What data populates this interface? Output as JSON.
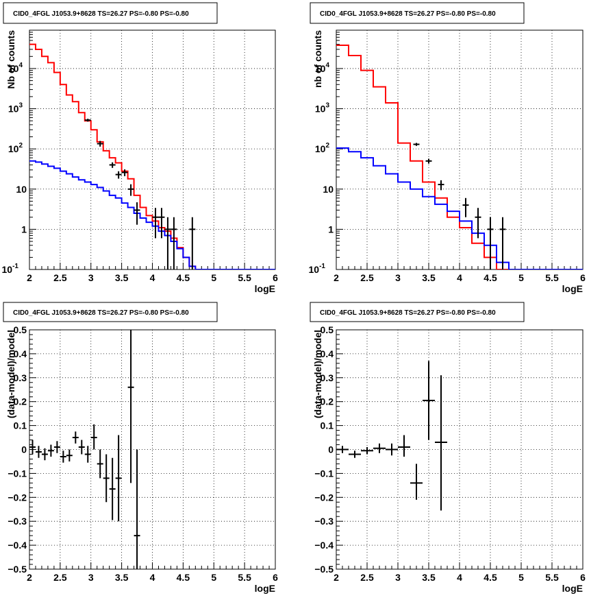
{
  "chart_data": [
    {
      "type": "line",
      "title": "CID0_4FGL J1053.9+8628 TS=26.27 PS=-0.80 PS=-0.80",
      "xlabel": "logE",
      "ylabel": "Nb of counts",
      "xlim": [
        2,
        6
      ],
      "ylim": [
        0.1,
        90000
      ],
      "yscale": "log",
      "grid": true,
      "xticks": [
        "2",
        "2.5",
        "3",
        "3.5",
        "4",
        "4.5",
        "5",
        "5.5",
        "6"
      ],
      "yticks": [
        {
          "base": "10",
          "exp": "-1",
          "value": 0.1
        },
        {
          "base": "1",
          "exp": "",
          "value": 1
        },
        {
          "base": "10",
          "exp": "",
          "value": 10
        },
        {
          "base": "10",
          "exp": "2",
          "value": 100
        },
        {
          "base": "10",
          "exp": "3",
          "value": 1000
        },
        {
          "base": "10",
          "exp": "4",
          "value": 10000
        }
      ],
      "binEdges": [
        2,
        2.1,
        2.2,
        2.3,
        2.4,
        2.5,
        2.6,
        2.7,
        2.8,
        2.9,
        3,
        3.1,
        3.2,
        3.3,
        3.4,
        3.5,
        3.6,
        3.7,
        3.8,
        3.9,
        4,
        4.1,
        4.2,
        4.3,
        4.4,
        4.5,
        4.6,
        4.7,
        4.8,
        4.9,
        5,
        5.1,
        5.2,
        5.3,
        5.4,
        5.5,
        5.6,
        5.7,
        5.8,
        5.9,
        6
      ],
      "series": [
        {
          "color": "#ff0000",
          "kind": "hist",
          "values": [
            40000,
            30000,
            20000,
            14000,
            8000,
            4000,
            2200,
            1500,
            800,
            500,
            300,
            150,
            90,
            60,
            45,
            28,
            18,
            7,
            3.5,
            2.2,
            1.6,
            1.1,
            0.9,
            0.6,
            0.35,
            0.2,
            0.12,
            0.1,
            0.1,
            0.1,
            0.1,
            0.1,
            0.1,
            0.1,
            0.1,
            0.1,
            0.1,
            0.1,
            0.1,
            0.1
          ]
        },
        {
          "color": "#0000ff",
          "kind": "hist",
          "values": [
            50,
            47,
            42,
            37,
            33,
            28,
            24,
            20,
            17,
            15,
            13,
            11,
            9,
            7,
            6,
            4.5,
            3.5,
            2.5,
            1.9,
            1.5,
            1.2,
            0.9,
            0.7,
            0.5,
            0.33,
            0.2,
            0.12,
            0.1,
            0.1,
            0.1,
            0.1,
            0.1,
            0.1,
            0.1,
            0.1,
            0.1,
            0.1,
            0.1,
            0.1,
            0.1
          ]
        },
        {
          "color": "#000000",
          "kind": "points",
          "points": [
            {
              "x": 2.95,
              "y": 520,
              "lo": 478,
              "hi": 563
            },
            {
              "x": 3.15,
              "y": 135,
              "lo": 114,
              "hi": 158
            },
            {
              "x": 3.35,
              "y": 40,
              "lo": 33.7,
              "hi": 46.3
            },
            {
              "x": 3.45,
              "y": 23,
              "lo": 18.2,
              "hi": 27.8
            },
            {
              "x": 3.55,
              "y": 26,
              "lo": 21,
              "hi": 31
            },
            {
              "x": 3.65,
              "y": 10,
              "lo": 6.8,
              "hi": 13.2
            },
            {
              "x": 3.75,
              "y": 3,
              "lo": 1.3,
              "hi": 4.7
            },
            {
              "x": 4.05,
              "y": 2,
              "lo": 0.6,
              "hi": 3.4
            },
            {
              "x": 4.15,
              "y": 2,
              "lo": 0.6,
              "hi": 3.4
            },
            {
              "x": 4.25,
              "y": 1,
              "lo": 0.1,
              "hi": 2
            },
            {
              "x": 4.35,
              "y": 1,
              "lo": 0.1,
              "hi": 2
            },
            {
              "x": 4.65,
              "y": 1,
              "lo": 0.1,
              "hi": 2
            }
          ]
        }
      ]
    },
    {
      "type": "line",
      "title": "CID0_4FGL J1053.9+8628 TS=26.27 PS=-0.80 PS=-0.80",
      "xlabel": "logE",
      "ylabel": "nb of counts",
      "xlim": [
        2,
        6
      ],
      "ylim": [
        0.1,
        90000
      ],
      "yscale": "log",
      "grid": true,
      "xticks": [
        "2",
        "2.5",
        "3",
        "3.5",
        "4",
        "4.5",
        "5",
        "5.5",
        "6"
      ],
      "yticks": [
        {
          "base": "10",
          "exp": "-1",
          "value": 0.1
        },
        {
          "base": "1",
          "exp": "",
          "value": 1
        },
        {
          "base": "10",
          "exp": "",
          "value": 10
        },
        {
          "base": "10",
          "exp": "2",
          "value": 100
        },
        {
          "base": "10",
          "exp": "3",
          "value": 1000
        },
        {
          "base": "10",
          "exp": "4",
          "value": 10000
        }
      ],
      "binEdges": [
        2,
        2.2,
        2.4,
        2.6,
        2.8,
        3,
        3.2,
        3.4,
        3.6,
        3.8,
        4,
        4.2,
        4.4,
        4.6,
        4.8,
        5,
        5.2,
        5.4,
        5.6,
        5.8,
        6
      ],
      "series": [
        {
          "color": "#ff0000",
          "kind": "hist",
          "values": [
            38000,
            21000,
            9000,
            3500,
            1400,
            140,
            50,
            15,
            6,
            2,
            1.1,
            0.45,
            0.2,
            0.1,
            0.1,
            0.1,
            0.1,
            0.1,
            0.1,
            0.1
          ]
        },
        {
          "color": "#0000ff",
          "kind": "hist",
          "values": [
            105,
            85,
            60,
            38,
            24,
            15,
            10,
            6.5,
            4.2,
            2.8,
            1.6,
            0.8,
            0.4,
            0.15,
            0.1,
            0.1,
            0.1,
            0.1,
            0.1,
            0.1
          ]
        },
        {
          "color": "#000000",
          "kind": "points",
          "points": [
            {
              "x": 3.3,
              "y": 130,
              "lo": 119,
              "hi": 141
            },
            {
              "x": 3.5,
              "y": 50,
              "lo": 43,
              "hi": 57
            },
            {
              "x": 3.7,
              "y": 13,
              "lo": 9.4,
              "hi": 16.6
            },
            {
              "x": 4.1,
              "y": 4,
              "lo": 2,
              "hi": 6
            },
            {
              "x": 4.3,
              "y": 2,
              "lo": 0.6,
              "hi": 3.4
            },
            {
              "x": 4.5,
              "y": 1,
              "lo": 0.1,
              "hi": 2
            },
            {
              "x": 4.7,
              "y": 1,
              "lo": 0.1,
              "hi": 2
            }
          ]
        }
      ]
    },
    {
      "type": "scatter",
      "title": "CID0_4FGL J1053.9+8628 TS=26.27 PS=-0.80 PS=-0.80",
      "xlabel": "logE",
      "ylabel": "(data-model)/model",
      "xlim": [
        2,
        6
      ],
      "ylim": [
        -0.5,
        0.5
      ],
      "yscale": "linear",
      "grid": true,
      "xticks": [
        "2",
        "2.5",
        "3",
        "3.5",
        "4",
        "4.5",
        "5",
        "5.5",
        "6"
      ],
      "yticks": [
        {
          "base": "−0.5",
          "exp": "",
          "value": -0.5
        },
        {
          "base": "−0.4",
          "exp": "",
          "value": -0.4
        },
        {
          "base": "−0.3",
          "exp": "",
          "value": -0.3
        },
        {
          "base": "−0.2",
          "exp": "",
          "value": -0.2
        },
        {
          "base": "−0.1",
          "exp": "",
          "value": -0.1
        },
        {
          "base": "0",
          "exp": "",
          "value": 0
        },
        {
          "base": "0.1",
          "exp": "",
          "value": 0.1
        },
        {
          "base": "0.2",
          "exp": "",
          "value": 0.2
        },
        {
          "base": "0.3",
          "exp": "",
          "value": 0.3
        },
        {
          "base": "0.4",
          "exp": "",
          "value": 0.4
        },
        {
          "base": "0.5",
          "exp": "",
          "value": 0.5
        }
      ],
      "halfWidth": 0.05,
      "series": [
        {
          "color": "#000000",
          "kind": "points",
          "points": [
            {
              "x": 2.05,
              "y": 0.01,
              "lo": -0.02,
              "hi": 0.04
            },
            {
              "x": 2.15,
              "y": -0.01,
              "lo": -0.035,
              "hi": 0.015
            },
            {
              "x": 2.25,
              "y": -0.02,
              "lo": -0.045,
              "hi": 0.005
            },
            {
              "x": 2.35,
              "y": -0.005,
              "lo": -0.03,
              "hi": 0.02
            },
            {
              "x": 2.45,
              "y": 0.01,
              "lo": -0.015,
              "hi": 0.035
            },
            {
              "x": 2.55,
              "y": -0.03,
              "lo": -0.055,
              "hi": -0.005
            },
            {
              "x": 2.65,
              "y": -0.025,
              "lo": -0.05,
              "hi": 0.0
            },
            {
              "x": 2.75,
              "y": 0.05,
              "lo": 0.025,
              "hi": 0.075
            },
            {
              "x": 2.85,
              "y": 0.01,
              "lo": -0.02,
              "hi": 0.04
            },
            {
              "x": 2.95,
              "y": -0.02,
              "lo": -0.055,
              "hi": 0.015
            },
            {
              "x": 3.05,
              "y": 0.05,
              "lo": 0.0,
              "hi": 0.105
            },
            {
              "x": 3.15,
              "y": -0.06,
              "lo": -0.12,
              "hi": 0.0
            },
            {
              "x": 3.25,
              "y": -0.12,
              "lo": -0.22,
              "hi": -0.02
            },
            {
              "x": 3.35,
              "y": -0.165,
              "lo": -0.295,
              "hi": -0.035
            },
            {
              "x": 3.45,
              "y": -0.12,
              "lo": -0.3,
              "hi": 0.06
            },
            {
              "x": 3.65,
              "y": 0.26,
              "lo": -0.14,
              "hi": 0.66
            },
            {
              "x": 3.75,
              "y": -0.36,
              "lo": -0.72,
              "hi": 0.0
            }
          ]
        }
      ]
    },
    {
      "type": "scatter",
      "title": "CID0_4FGL J1053.9+8628 TS=26.27 PS=-0.80 PS=-0.80",
      "xlabel": "logE",
      "ylabel": "(data-model)/model",
      "xlim": [
        2,
        6
      ],
      "ylim": [
        -0.5,
        0.5
      ],
      "yscale": "linear",
      "grid": true,
      "xticks": [
        "2",
        "2.5",
        "3",
        "3.5",
        "4",
        "4.5",
        "5",
        "5.5",
        "6"
      ],
      "yticks": [
        {
          "base": "−0.5",
          "exp": "",
          "value": -0.5
        },
        {
          "base": "−0.4",
          "exp": "",
          "value": -0.4
        },
        {
          "base": "−0.3",
          "exp": "",
          "value": -0.3
        },
        {
          "base": "−0.2",
          "exp": "",
          "value": -0.2
        },
        {
          "base": "−0.1",
          "exp": "",
          "value": -0.1
        },
        {
          "base": "0",
          "exp": "",
          "value": 0
        },
        {
          "base": "0.1",
          "exp": "",
          "value": 0.1
        },
        {
          "base": "0.2",
          "exp": "",
          "value": 0.2
        },
        {
          "base": "0.3",
          "exp": "",
          "value": 0.3
        },
        {
          "base": "0.4",
          "exp": "",
          "value": 0.4
        },
        {
          "base": "0.5",
          "exp": "",
          "value": 0.5
        }
      ],
      "halfWidth": 0.1,
      "series": [
        {
          "color": "#000000",
          "kind": "points",
          "points": [
            {
              "x": 2.1,
              "y": 0.0,
              "lo": -0.015,
              "hi": 0.015
            },
            {
              "x": 2.3,
              "y": -0.02,
              "lo": -0.035,
              "hi": -0.005
            },
            {
              "x": 2.5,
              "y": -0.005,
              "lo": -0.02,
              "hi": 0.01
            },
            {
              "x": 2.7,
              "y": 0.005,
              "lo": -0.015,
              "hi": 0.025
            },
            {
              "x": 2.9,
              "y": 0.0,
              "lo": -0.025,
              "hi": 0.025
            },
            {
              "x": 3.1,
              "y": 0.01,
              "lo": -0.03,
              "hi": 0.06
            },
            {
              "x": 3.3,
              "y": -0.14,
              "lo": -0.21,
              "hi": -0.06
            },
            {
              "x": 3.5,
              "y": 0.205,
              "lo": 0.04,
              "hi": 0.37
            },
            {
              "x": 3.7,
              "y": 0.03,
              "lo": -0.255,
              "hi": 0.31
            }
          ]
        }
      ]
    }
  ]
}
